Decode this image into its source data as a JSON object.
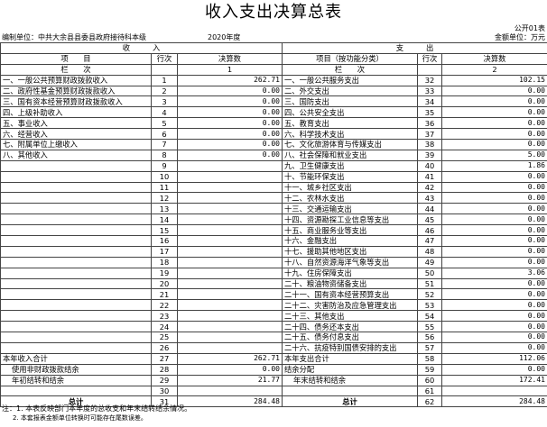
{
  "title": "收入支出决算总表",
  "form_no": "公开01表",
  "unit": "编制单位：中共大余县县委县政府接待科本级",
  "year": "2020年度",
  "currency": "金额单位：万元",
  "header": {
    "income": "收　　　入",
    "expense": "支　　　出",
    "item": "项　　目",
    "line": "行次",
    "amount": "决算数",
    "item_func": "项目（按功能分类）",
    "col_label": "栏　　次",
    "col_in": "1",
    "col_ex": "2"
  },
  "rows": [
    {
      "l": [
        "一、一般公共预算财政拨款收入",
        "1",
        "262.71"
      ],
      "r": [
        "一、一般公共服务支出",
        "32",
        "102.15"
      ]
    },
    {
      "l": [
        "二、政府性基金预算财政拨款收入",
        "2",
        "0.00"
      ],
      "r": [
        "二、外交支出",
        "33",
        "0.00"
      ]
    },
    {
      "l": [
        "三、国有资本经营预算财政拨款收入",
        "3",
        "0.00"
      ],
      "r": [
        "三、国防支出",
        "34",
        "0.00"
      ]
    },
    {
      "l": [
        "四、上级补助收入",
        "4",
        "0.00"
      ],
      "r": [
        "四、公共安全支出",
        "35",
        "0.00"
      ]
    },
    {
      "l": [
        "五、事业收入",
        "5",
        "0.00"
      ],
      "r": [
        "五、教育支出",
        "36",
        "0.00"
      ]
    },
    {
      "l": [
        "六、经营收入",
        "6",
        "0.00"
      ],
      "r": [
        "六、科学技术支出",
        "37",
        "0.00"
      ]
    },
    {
      "l": [
        "七、附属单位上缴收入",
        "7",
        "0.00"
      ],
      "r": [
        "七、文化旅游体育与传媒支出",
        "38",
        "0.00"
      ]
    },
    {
      "l": [
        "八、其他收入",
        "8",
        "0.00"
      ],
      "r": [
        "八、社会保障和就业支出",
        "39",
        "5.00"
      ]
    },
    {
      "l": [
        "",
        "9",
        ""
      ],
      "r": [
        "九、卫生健康支出",
        "40",
        "1.86"
      ]
    },
    {
      "l": [
        "",
        "10",
        ""
      ],
      "r": [
        "十、节能环保支出",
        "41",
        "0.00"
      ]
    },
    {
      "l": [
        "",
        "11",
        ""
      ],
      "r": [
        "十一、城乡社区支出",
        "42",
        "0.00"
      ]
    },
    {
      "l": [
        "",
        "12",
        ""
      ],
      "r": [
        "十二、农林水支出",
        "43",
        "0.00"
      ]
    },
    {
      "l": [
        "",
        "13",
        ""
      ],
      "r": [
        "十三、交通运输支出",
        "44",
        "0.00"
      ]
    },
    {
      "l": [
        "",
        "14",
        ""
      ],
      "r": [
        "十四、资源勘探工业信息等支出",
        "45",
        "0.00"
      ]
    },
    {
      "l": [
        "",
        "15",
        ""
      ],
      "r": [
        "十五、商业服务业等支出",
        "46",
        "0.00"
      ]
    },
    {
      "l": [
        "",
        "16",
        ""
      ],
      "r": [
        "十六、金融支出",
        "47",
        "0.00"
      ]
    },
    {
      "l": [
        "",
        "17",
        ""
      ],
      "r": [
        "十七、援助其他地区支出",
        "48",
        "0.00"
      ]
    },
    {
      "l": [
        "",
        "18",
        ""
      ],
      "r": [
        "十八、自然资源海洋气象等支出",
        "49",
        "0.00"
      ]
    },
    {
      "l": [
        "",
        "19",
        ""
      ],
      "r": [
        "十九、住房保障支出",
        "50",
        "3.06"
      ]
    },
    {
      "l": [
        "",
        "20",
        ""
      ],
      "r": [
        "二十、粮油物资储备支出",
        "51",
        "0.00"
      ]
    },
    {
      "l": [
        "",
        "21",
        ""
      ],
      "r": [
        "二十一、国有资本经营预算支出",
        "52",
        "0.00"
      ]
    },
    {
      "l": [
        "",
        "22",
        ""
      ],
      "r": [
        "二十二、灾害防治及应急管理支出",
        "53",
        "0.00"
      ]
    },
    {
      "l": [
        "",
        "23",
        ""
      ],
      "r": [
        "二十三、其他支出",
        "54",
        "0.00"
      ]
    },
    {
      "l": [
        "",
        "24",
        ""
      ],
      "r": [
        "二十四、债务还本支出",
        "55",
        "0.00"
      ]
    },
    {
      "l": [
        "",
        "25",
        ""
      ],
      "r": [
        "二十五、债务付息支出",
        "56",
        "0.00"
      ]
    },
    {
      "l": [
        "",
        "26",
        ""
      ],
      "r": [
        "二十六、抗疫特别国债安排的支出",
        "57",
        "0.00"
      ]
    },
    {
      "l": [
        "本年收入合计",
        "27",
        "262.71"
      ],
      "r": [
        "本年支出合计",
        "58",
        "112.06"
      ]
    },
    {
      "l": [
        "使用非财政拨款结余",
        "28",
        "0.00"
      ],
      "r": [
        "结余分配",
        "59",
        "0.00"
      ]
    },
    {
      "l": [
        "年初结转和结余",
        "29",
        "21.77"
      ],
      "r": [
        "年末结转和结余",
        "60",
        "172.41"
      ]
    },
    {
      "l": [
        "",
        "30",
        ""
      ],
      "r": [
        "",
        "61",
        ""
      ]
    },
    {
      "l": [
        "总计",
        "31",
        "284.48"
      ],
      "r": [
        "总计",
        "62",
        "284.48"
      ]
    }
  ],
  "notes": [
    "注：1. 本表反映部门本年度的总收支和年末结转结余情况。",
    "2. 本套报表金额单位转换时可能存在尾数误差。"
  ]
}
